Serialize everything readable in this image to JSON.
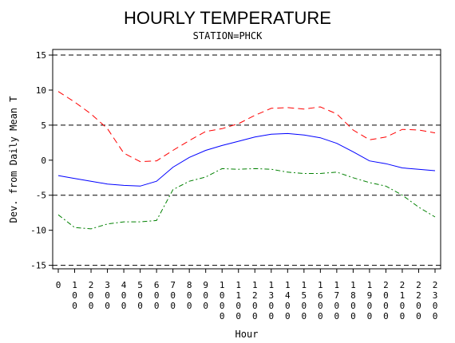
{
  "chart_data": {
    "type": "line",
    "title": "HOURLY TEMPERATURE",
    "subtitle": "STATION=PHCK",
    "xlabel": "Hour",
    "ylabel": "Dev. from Daily Mean T",
    "x": [
      0,
      100,
      200,
      300,
      400,
      500,
      600,
      700,
      800,
      900,
      1000,
      1100,
      1200,
      1300,
      1400,
      1500,
      1600,
      1700,
      1800,
      1900,
      2000,
      2100,
      2200,
      2300
    ],
    "x_tick_labels": [
      "0",
      "100",
      "200",
      "300",
      "400",
      "500",
      "600",
      "700",
      "800",
      "900",
      "1000",
      "1100",
      "1200",
      "1300",
      "1400",
      "1500",
      "1600",
      "1700",
      "1800",
      "1900",
      "2000",
      "2100",
      "2200",
      "2300"
    ],
    "ylim": [
      -15.5,
      15.8
    ],
    "y_ticks": [
      -15,
      -10,
      -5,
      0,
      5,
      10,
      15
    ],
    "reference_lines": [
      -15,
      -5,
      5,
      15
    ],
    "series": [
      {
        "color": "#ff0000",
        "dash": "dashed",
        "values": [
          9.8,
          8.3,
          6.6,
          4.5,
          1.0,
          -0.2,
          -0.1,
          1.4,
          2.8,
          4.1,
          4.5,
          5.2,
          6.4,
          7.4,
          7.5,
          7.3,
          7.6,
          6.6,
          4.3,
          2.9,
          3.3,
          4.4,
          4.3,
          3.9
        ]
      },
      {
        "color": "#0000ff",
        "dash": "solid",
        "values": [
          -2.2,
          -2.6,
          -3.0,
          -3.4,
          -3.6,
          -3.7,
          -3.0,
          -1.0,
          0.4,
          1.4,
          2.1,
          2.7,
          3.3,
          3.7,
          3.8,
          3.6,
          3.2,
          2.4,
          1.2,
          -0.1,
          -0.5,
          -1.1,
          -1.3,
          -1.5
        ]
      },
      {
        "color": "#008000",
        "dash": "dashdot",
        "values": [
          -7.8,
          -9.6,
          -9.8,
          -9.1,
          -8.8,
          -8.8,
          -8.6,
          -4.2,
          -3.0,
          -2.4,
          -1.2,
          -1.3,
          -1.2,
          -1.3,
          -1.7,
          -1.9,
          -1.9,
          -1.7,
          -2.5,
          -3.2,
          -3.7,
          -5.0,
          -6.7,
          -8.1
        ]
      }
    ]
  }
}
